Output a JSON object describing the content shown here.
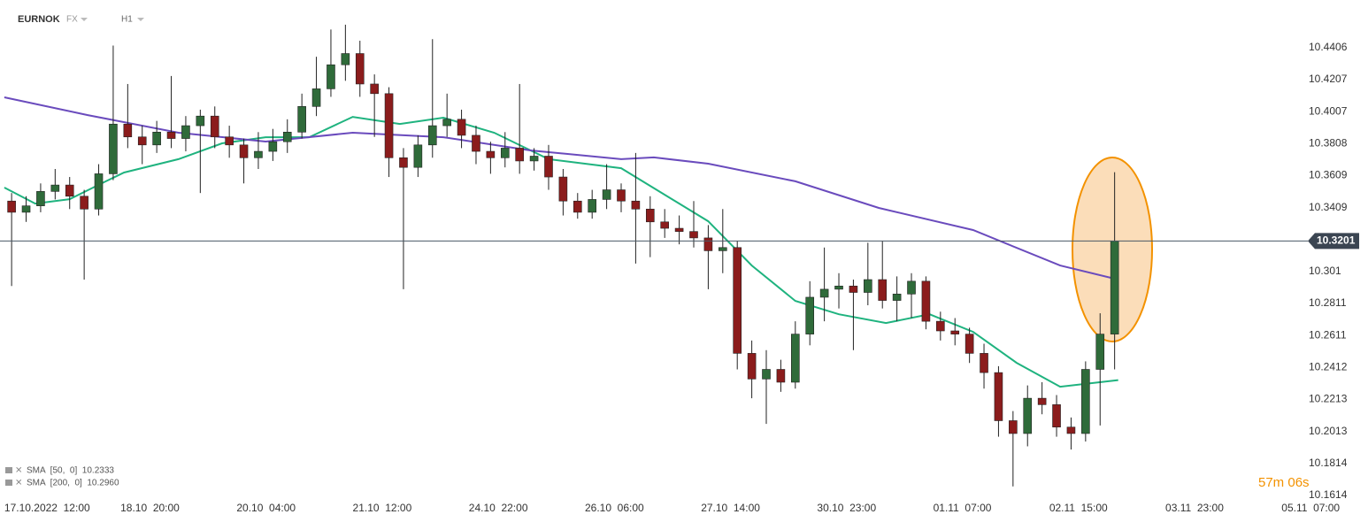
{
  "chart_data": {
    "type": "candlestick",
    "symbol": "EURNOK",
    "market": "FX",
    "interval": "H1",
    "timer": "57m 06s",
    "last_price": 10.3201,
    "xlim": [
      -1.2,
      357.3
    ],
    "ylim": [
      10.1586,
      10.4704
    ],
    "yticks": [
      10.4406,
      10.4207,
      10.4007,
      10.3808,
      10.3609,
      10.3409,
      10.301,
      10.2811,
      10.2611,
      10.2412,
      10.2213,
      10.2013,
      10.1814,
      10.1614
    ],
    "xticks": [
      {
        "value": 0,
        "label": "17.10.2022  12:00"
      },
      {
        "value": 32,
        "label": "18.10  20:00"
      },
      {
        "value": 64,
        "label": "20.10  04:00"
      },
      {
        "value": 96,
        "label": "21.10  12:00"
      },
      {
        "value": 128,
        "label": "24.10  22:00"
      },
      {
        "value": 160,
        "label": "26.10  06:00"
      },
      {
        "value": 192,
        "label": "27.10  14:00"
      },
      {
        "value": 224,
        "label": "30.10  23:00"
      },
      {
        "value": 256,
        "label": "01.11  07:00"
      },
      {
        "value": 288,
        "label": "02.11  15:00"
      },
      {
        "value": 320,
        "label": "03.11  23:00"
      },
      {
        "value": 352,
        "label": "05.11  07:00"
      }
    ],
    "up_color": "#2f6b3a",
    "down_color": "#8b1c1c",
    "candles": {
      "x": [
        2,
        6,
        10,
        14,
        18,
        22,
        26,
        30,
        34,
        38,
        42,
        46,
        50,
        54,
        58,
        62,
        66,
        70,
        74,
        78,
        82,
        86,
        90,
        94,
        98,
        102,
        106,
        110,
        114,
        118,
        122,
        126,
        130,
        134,
        138,
        142,
        146,
        150,
        154,
        158,
        162,
        166,
        170,
        174,
        178,
        182,
        186,
        190,
        194,
        198,
        202,
        206,
        210,
        214,
        218,
        222,
        226,
        230,
        234,
        238,
        242,
        246,
        250,
        254,
        258,
        262,
        266,
        270,
        274,
        278,
        282,
        286,
        290,
        294,
        298,
        302,
        306
      ],
      "open": [
        10.345,
        10.338,
        10.342,
        10.351,
        10.355,
        10.348,
        10.34,
        10.362,
        10.393,
        10.385,
        10.38,
        10.388,
        10.384,
        10.392,
        10.398,
        10.385,
        10.38,
        10.372,
        10.376,
        10.382,
        10.388,
        10.404,
        10.415,
        10.43,
        10.437,
        10.418,
        10.412,
        10.372,
        10.366,
        10.38,
        10.392,
        10.396,
        10.386,
        10.376,
        10.372,
        10.378,
        10.37,
        10.373,
        10.36,
        10.345,
        10.338,
        10.346,
        10.352,
        10.345,
        10.34,
        10.332,
        10.328,
        10.326,
        10.322,
        10.314,
        10.316,
        10.25,
        10.234,
        10.24,
        10.232,
        10.262,
        10.285,
        10.29,
        10.292,
        10.288,
        10.296,
        10.283,
        10.287,
        10.295,
        10.27,
        10.264,
        10.262,
        10.25,
        10.238,
        10.208,
        10.2,
        10.222,
        10.218,
        10.204,
        10.2,
        10.24,
        10.262
      ],
      "high": [
        10.35,
        10.348,
        10.356,
        10.365,
        10.36,
        10.352,
        10.368,
        10.442,
        10.418,
        10.392,
        10.395,
        10.423,
        10.398,
        10.402,
        10.404,
        10.392,
        10.384,
        10.388,
        10.39,
        10.396,
        10.412,
        10.435,
        10.452,
        10.455,
        10.445,
        10.424,
        10.416,
        10.378,
        10.386,
        10.446,
        10.412,
        10.402,
        10.392,
        10.382,
        10.388,
        10.418,
        10.378,
        10.38,
        10.365,
        10.35,
        10.352,
        10.368,
        10.356,
        10.375,
        10.348,
        10.34,
        10.336,
        10.345,
        10.33,
        10.34,
        10.32,
        10.258,
        10.252,
        10.246,
        10.27,
        10.295,
        10.316,
        10.3,
        10.296,
        10.319,
        10.32,
        10.298,
        10.3,
        10.298,
        10.276,
        10.272,
        10.266,
        10.256,
        10.242,
        10.214,
        10.23,
        10.232,
        10.224,
        10.21,
        10.245,
        10.275,
        10.363
      ],
      "low": [
        10.292,
        10.332,
        10.338,
        10.346,
        10.34,
        10.296,
        10.336,
        10.358,
        10.378,
        10.368,
        10.375,
        10.378,
        10.376,
        10.35,
        10.378,
        10.372,
        10.356,
        10.365,
        10.37,
        10.375,
        10.384,
        10.398,
        10.41,
        10.42,
        10.41,
        10.385,
        10.36,
        10.29,
        10.36,
        10.372,
        10.385,
        10.378,
        10.368,
        10.362,
        10.366,
        10.362,
        10.364,
        10.352,
        10.336,
        10.334,
        10.334,
        10.34,
        10.338,
        10.306,
        10.31,
        10.322,
        10.318,
        10.316,
        10.29,
        10.3,
        10.24,
        10.222,
        10.206,
        10.226,
        10.228,
        10.255,
        10.27,
        10.278,
        10.252,
        10.28,
        10.278,
        10.27,
        10.272,
        10.265,
        10.258,
        10.255,
        10.244,
        10.228,
        10.198,
        10.167,
        10.192,
        10.212,
        10.198,
        10.19,
        10.195,
        10.205,
        10.24
      ],
      "close": [
        10.338,
        10.342,
        10.351,
        10.355,
        10.348,
        10.34,
        10.362,
        10.393,
        10.385,
        10.38,
        10.388,
        10.384,
        10.392,
        10.398,
        10.385,
        10.38,
        10.372,
        10.376,
        10.382,
        10.388,
        10.404,
        10.415,
        10.43,
        10.437,
        10.418,
        10.412,
        10.372,
        10.366,
        10.38,
        10.392,
        10.396,
        10.386,
        10.376,
        10.372,
        10.378,
        10.37,
        10.373,
        10.36,
        10.345,
        10.338,
        10.346,
        10.352,
        10.345,
        10.34,
        10.332,
        10.328,
        10.326,
        10.322,
        10.314,
        10.316,
        10.25,
        10.234,
        10.24,
        10.232,
        10.262,
        10.285,
        10.29,
        10.292,
        10.288,
        10.296,
        10.283,
        10.287,
        10.295,
        10.27,
        10.264,
        10.262,
        10.25,
        10.238,
        10.208,
        10.2,
        10.222,
        10.218,
        10.204,
        10.2,
        10.24,
        10.262,
        10.3201
      ]
    },
    "series": [
      {
        "name": "SMA  [50,  0]  10.2333",
        "color": "#1fb37f",
        "x": [
          0,
          8.5,
          18,
          28,
          33,
          48,
          60,
          72,
          84,
          96,
          109,
          121,
          135,
          150,
          170,
          184,
          194,
          206,
          218,
          230,
          243,
          255,
          267,
          279,
          291,
          307
        ],
        "values": [
          10.3534,
          10.3434,
          10.3462,
          10.3573,
          10.3628,
          10.3711,
          10.381,
          10.3848,
          10.3848,
          10.3975,
          10.3931,
          10.397,
          10.3876,
          10.3711,
          10.3655,
          10.3462,
          10.3324,
          10.3048,
          10.2827,
          10.2744,
          10.2689,
          10.2744,
          10.2634,
          10.2441,
          10.2292,
          10.2333
        ]
      },
      {
        "name": "SMA  [200,  0]  10.2960",
        "color": "#6a4bbd",
        "x": [
          0,
          23,
          48,
          72,
          96,
          121,
          145,
          170,
          179,
          194,
          218,
          241,
          267,
          291,
          307
        ],
        "values": [
          10.4097,
          10.3986,
          10.3876,
          10.3821,
          10.3876,
          10.3848,
          10.3766,
          10.3711,
          10.3722,
          10.3683,
          10.3573,
          10.3407,
          10.3269,
          10.3048,
          10.296
        ]
      }
    ]
  }
}
